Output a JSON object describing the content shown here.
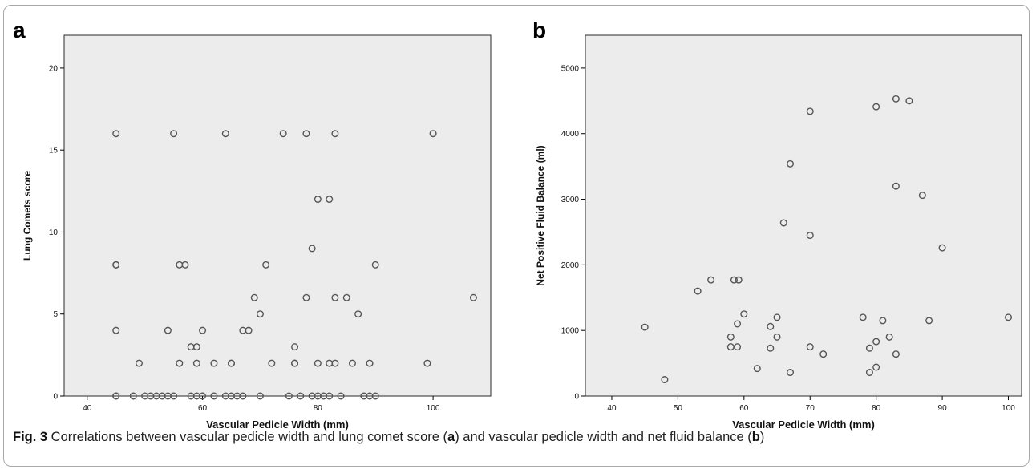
{
  "panels": {
    "a": "a",
    "b": "b"
  },
  "caption": {
    "label": "Fig. 3",
    "text_1": " Correlations between vascular pedicle width and lung comet score (",
    "ref_a": "a",
    "text_2": ") and vascular pedicle width and net fluid balance (",
    "ref_b": "b",
    "text_3": ")"
  },
  "colors": {
    "plot_bg": "#ececec",
    "marker_stroke": "#555555",
    "axis": "#000000"
  },
  "chart_data": [
    {
      "type": "scatter",
      "panel": "a",
      "title": "",
      "xlabel": "Vascular Pedicle Width (mm)",
      "ylabel": "Lung Comets score",
      "xlim": [
        36,
        110
      ],
      "ylim": [
        0,
        22
      ],
      "xticks": [
        40,
        60,
        80,
        100
      ],
      "yticks": [
        0,
        5,
        10,
        15,
        20
      ],
      "grid": false,
      "points": [
        [
          45,
          16
        ],
        [
          45,
          8
        ],
        [
          45,
          8
        ],
        [
          45,
          4
        ],
        [
          45,
          0
        ],
        [
          45,
          0
        ],
        [
          48,
          0
        ],
        [
          49,
          2
        ],
        [
          50,
          0
        ],
        [
          51,
          0
        ],
        [
          52,
          0
        ],
        [
          53,
          0
        ],
        [
          54,
          0
        ],
        [
          54,
          4
        ],
        [
          55,
          0
        ],
        [
          55,
          16
        ],
        [
          56,
          2
        ],
        [
          56,
          8
        ],
        [
          57,
          8
        ],
        [
          58,
          0
        ],
        [
          58,
          3
        ],
        [
          59,
          0
        ],
        [
          59,
          3
        ],
        [
          59,
          2
        ],
        [
          60,
          0
        ],
        [
          60,
          4
        ],
        [
          62,
          2
        ],
        [
          62,
          0
        ],
        [
          64,
          0
        ],
        [
          64,
          16
        ],
        [
          65,
          2
        ],
        [
          65,
          2
        ],
        [
          65,
          0
        ],
        [
          66,
          0
        ],
        [
          67,
          0
        ],
        [
          67,
          4
        ],
        [
          68,
          4
        ],
        [
          69,
          6
        ],
        [
          70,
          0
        ],
        [
          70,
          5
        ],
        [
          71,
          8
        ],
        [
          72,
          2
        ],
        [
          74,
          16
        ],
        [
          75,
          0
        ],
        [
          76,
          3
        ],
        [
          76,
          2
        ],
        [
          76,
          2
        ],
        [
          77,
          0
        ],
        [
          78,
          16
        ],
        [
          78,
          6
        ],
        [
          79,
          9
        ],
        [
          79,
          0
        ],
        [
          80,
          12
        ],
        [
          80,
          2
        ],
        [
          80,
          0
        ],
        [
          81,
          0
        ],
        [
          82,
          0
        ],
        [
          82,
          12
        ],
        [
          82,
          2
        ],
        [
          83,
          16
        ],
        [
          83,
          6
        ],
        [
          83,
          2
        ],
        [
          84,
          0
        ],
        [
          85,
          6
        ],
        [
          86,
          2
        ],
        [
          87,
          5
        ],
        [
          88,
          0
        ],
        [
          89,
          2
        ],
        [
          89,
          0
        ],
        [
          90,
          8
        ],
        [
          90,
          0
        ],
        [
          99,
          2
        ],
        [
          100,
          16
        ],
        [
          107,
          6
        ]
      ]
    },
    {
      "type": "scatter",
      "panel": "b",
      "title": "",
      "xlabel": "Vascular Pedicle Width (mm)",
      "ylabel": "Net Positive Fluid Balance (ml)",
      "xlim": [
        36,
        102
      ],
      "ylim": [
        0,
        5500
      ],
      "xticks": [
        40,
        50,
        60,
        70,
        80,
        90,
        100
      ],
      "yticks": [
        0,
        1000,
        2000,
        3000,
        4000,
        5000
      ],
      "grid": false,
      "points": [
        [
          45,
          1050
        ],
        [
          48,
          250
        ],
        [
          53,
          1600
        ],
        [
          55,
          1770
        ],
        [
          58,
          900
        ],
        [
          58,
          750
        ],
        [
          58.5,
          1770
        ],
        [
          59,
          1100
        ],
        [
          59,
          750
        ],
        [
          59.2,
          1770
        ],
        [
          60,
          1250
        ],
        [
          62,
          420
        ],
        [
          64,
          1060
        ],
        [
          64,
          730
        ],
        [
          65,
          1200
        ],
        [
          65,
          900
        ],
        [
          66,
          2640
        ],
        [
          67,
          3540
        ],
        [
          67,
          360
        ],
        [
          70,
          4340
        ],
        [
          70,
          2450
        ],
        [
          70,
          750
        ],
        [
          72,
          640
        ],
        [
          78,
          1200
        ],
        [
          79,
          360
        ],
        [
          79,
          730
        ],
        [
          80,
          4410
        ],
        [
          80,
          830
        ],
        [
          80,
          440
        ],
        [
          81,
          1150
        ],
        [
          82,
          900
        ],
        [
          83,
          4530
        ],
        [
          83,
          3200
        ],
        [
          83,
          640
        ],
        [
          85,
          4500
        ],
        [
          87,
          3060
        ],
        [
          88,
          1150
        ],
        [
          90,
          2260
        ],
        [
          100,
          1200
        ]
      ]
    }
  ]
}
